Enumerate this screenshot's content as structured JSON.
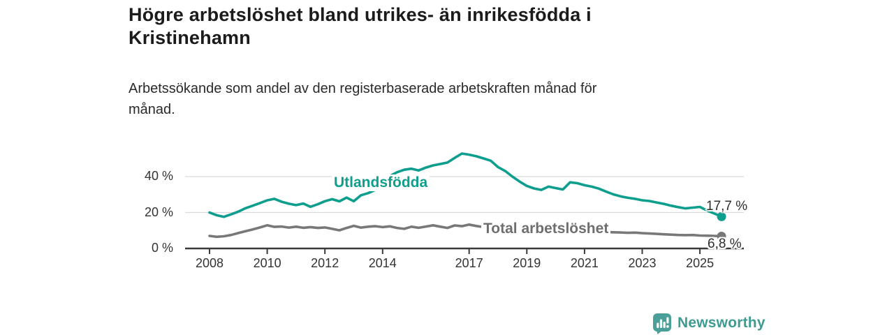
{
  "header": {
    "title_line1": "Högre arbetslöshet bland utrikes- än inrikesfödda i",
    "title_line2": "Kristinehamn",
    "subtitle_line1": "Arbetssökande som andel av den registerbaserade arbetskraften månad för",
    "subtitle_line2": "månad."
  },
  "footer": {
    "brand": "Newsworthy"
  },
  "colors": {
    "accent_teal": "#0d9e8e",
    "series_gray": "#787878",
    "grid": "#dadada",
    "axis": "#3a3a3a",
    "title_text": "#1b1b1b",
    "logo_teal": "#4aa098"
  },
  "chart_data": {
    "type": "line",
    "title": "Högre arbetslöshet bland utrikes- än inrikesfödda i Kristinehamn",
    "subtitle": "Arbetssökande som andel av den registerbaserade arbetskraften månad för månad.",
    "ylabel": "",
    "xlabel": "",
    "ylim": [
      0,
      58
    ],
    "xlim": [
      2007.2,
      2026.4
    ],
    "grid": "horizontal",
    "legend_position": "inline-labels",
    "x_start": 2008,
    "x_step": 0.25,
    "y_ticks": [
      {
        "value": 0,
        "label": "0 %"
      },
      {
        "value": 20,
        "label": "20 %"
      },
      {
        "value": 40,
        "label": "40 %"
      }
    ],
    "x_ticks": [
      {
        "value": 2008,
        "label": "2008"
      },
      {
        "value": 2010,
        "label": "2010"
      },
      {
        "value": 2012,
        "label": "2012"
      },
      {
        "value": 2014,
        "label": "2014"
      },
      {
        "value": 2017,
        "label": "2017"
      },
      {
        "value": 2019,
        "label": "2019"
      },
      {
        "value": 2021,
        "label": "2021"
      },
      {
        "value": 2023,
        "label": "2023"
      },
      {
        "value": 2025,
        "label": "2025"
      }
    ],
    "series": [
      {
        "name": "Utlandsfödda",
        "color": "#0d9e8e",
        "end_label": "17,7 %",
        "end_value": 17.7,
        "values": [
          20.0,
          18.5,
          17.6,
          19.0,
          20.5,
          22.4,
          23.8,
          25.3,
          26.8,
          27.6,
          26.0,
          24.9,
          24.1,
          25.0,
          23.2,
          24.6,
          26.3,
          27.4,
          26.2,
          28.3,
          26.3,
          29.6,
          30.8,
          32.6,
          36.0,
          40.3,
          42.4,
          43.8,
          44.4,
          43.4,
          45.0,
          46.2,
          47.0,
          47.8,
          50.4,
          52.8,
          52.2,
          51.3,
          50.1,
          48.8,
          45.3,
          43.1,
          40.0,
          37.2,
          34.8,
          33.4,
          32.6,
          34.4,
          33.6,
          32.8,
          36.8,
          36.3,
          35.2,
          34.4,
          33.3,
          31.6,
          30.1,
          29.0,
          28.2,
          27.6,
          26.8,
          26.4,
          25.6,
          24.8,
          23.8,
          23.0,
          22.3,
          22.7,
          23.1,
          21.1,
          19.4,
          17.7
        ]
      },
      {
        "name": "Total arbetslöshet",
        "color": "#787878",
        "end_label": "6,8 %",
        "end_value": 6.8,
        "values": [
          7.0,
          6.5,
          6.8,
          7.5,
          8.6,
          9.6,
          10.6,
          11.7,
          12.9,
          12.0,
          12.2,
          11.6,
          12.1,
          11.5,
          11.9,
          11.4,
          11.7,
          10.9,
          10.1,
          11.4,
          12.6,
          11.6,
          12.1,
          12.4,
          11.9,
          12.3,
          11.4,
          10.9,
          12.1,
          11.5,
          12.2,
          12.9,
          12.1,
          11.4,
          12.8,
          12.4,
          13.3,
          12.5,
          11.9,
          11.6,
          11.9,
          11.4,
          11.0,
          10.6,
          10.2,
          9.9,
          9.7,
          9.9,
          10.1,
          10.6,
          10.9,
          10.4,
          10.0,
          9.7,
          9.4,
          9.1,
          9.0,
          8.9,
          8.7,
          8.8,
          8.5,
          8.3,
          8.1,
          7.9,
          7.7,
          7.5,
          7.4,
          7.5,
          7.2,
          7.1,
          7.0,
          6.8
        ]
      }
    ]
  }
}
